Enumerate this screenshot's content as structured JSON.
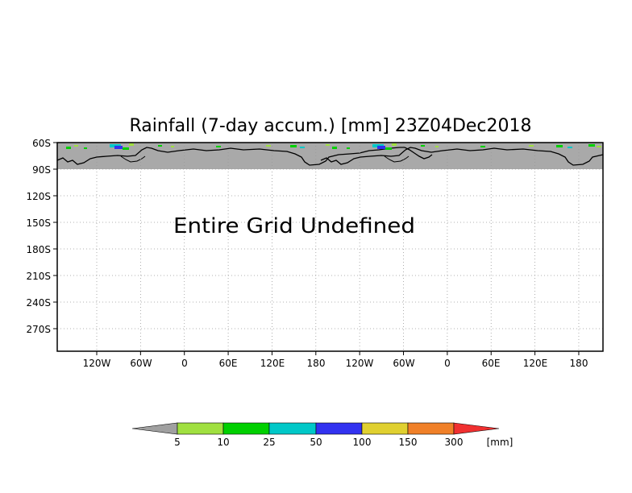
{
  "title": "Rainfall (7-day accum.) [mm] 23Z04Dec2018",
  "message": "Entire Grid Undefined",
  "map": {
    "land_color": "#a9a9a9",
    "frame_color": "#000000",
    "grid_color": "#999999",
    "y_ticks": [
      "60S",
      "90S",
      "120S",
      "150S",
      "180S",
      "210S",
      "240S",
      "270S"
    ],
    "x_ticks": [
      "120W",
      "60W",
      "0",
      "60E",
      "120E",
      "180",
      "120W",
      "60W",
      "0",
      "60E",
      "120E",
      "180"
    ]
  },
  "colorbar": {
    "unit": "[mm]",
    "below_color": "#a0a0a0",
    "above_color": "#f03030",
    "colors": [
      "#a0e040",
      "#00d000",
      "#00c8c8",
      "#3232f0",
      "#e0d030",
      "#f08028"
    ],
    "labels": [
      "5",
      "10",
      "25",
      "50",
      "100",
      "150",
      "300"
    ]
  }
}
